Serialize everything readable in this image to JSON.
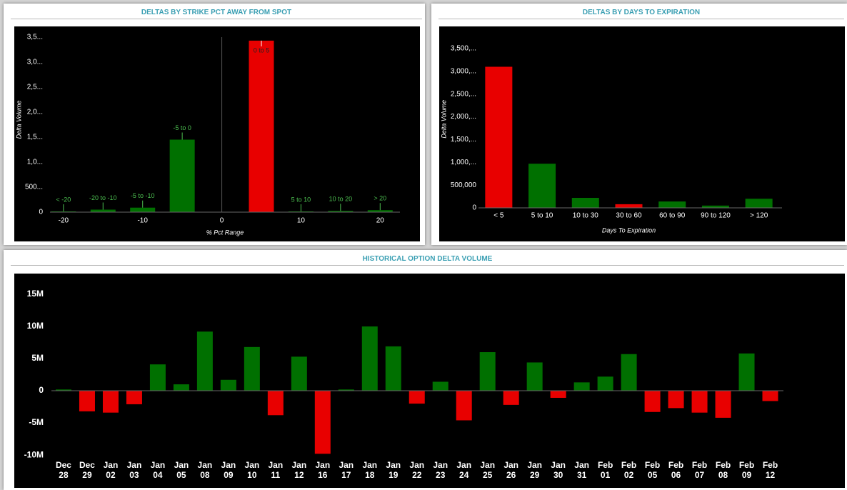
{
  "chart_data": [
    {
      "type": "bar",
      "title": "DELTAS BY STRIKE PCT AWAY FROM SPOT",
      "x_label": "% Pct Range",
      "y_label": "Delta Volume",
      "categories": [
        "< -20",
        "-20 to -10",
        "-5 to -10",
        "-5 to 0",
        "0 to 5",
        "5 to 10",
        "10 to 20",
        "> 20"
      ],
      "x": [
        -20,
        -15,
        -10,
        -5,
        5,
        10,
        15,
        20
      ],
      "values": [
        15000,
        50000,
        90000,
        1450000,
        3430000,
        15000,
        25000,
        40000
      ],
      "colors": [
        "#007000",
        "#007000",
        "#007000",
        "#007000",
        "#e80000",
        "#007000",
        "#007000",
        "#007000"
      ],
      "label_color": "#4cbf50",
      "xlim": [
        -21.7,
        22.5
      ],
      "xticks": [
        -20,
        -10,
        0,
        10,
        20
      ],
      "ylim": [
        0,
        3700000
      ],
      "yticks": [
        0,
        {
          "value": 500000,
          "label": "500..."
        },
        {
          "value": 1000000,
          "label": "1,0..."
        },
        {
          "value": 1500000,
          "label": "1,5..."
        },
        {
          "value": 2000000,
          "label": "2,0..."
        },
        {
          "value": 2500000,
          "label": "2,5..."
        },
        {
          "value": 3000000,
          "label": "3,0..."
        },
        {
          "value": 3500000,
          "label": "3,5..."
        }
      ],
      "grid": false
    },
    {
      "type": "bar",
      "title": "DELTAS BY DAYS TO EXPIRATION",
      "x_label": "Days To Expiration",
      "y_label": "Delta Volume",
      "categories": [
        "< 5",
        "5 to 10",
        "10 to 30",
        "30 to 60",
        "60 to 90",
        "90 to 120",
        "> 120"
      ],
      "values": [
        3100000,
        970000,
        220000,
        80000,
        140000,
        50000,
        200000
      ],
      "colors": [
        "#e80000",
        "#007000",
        "#007000",
        "#e80000",
        "#007000",
        "#007000",
        "#007000"
      ],
      "ylim": [
        0,
        3900000
      ],
      "yticks": [
        0,
        {
          "value": 500000,
          "label": "500,000"
        },
        {
          "value": 1000000,
          "label": "1,000,..."
        },
        {
          "value": 1500000,
          "label": "1,500,..."
        },
        {
          "value": 2000000,
          "label": "2,000,..."
        },
        {
          "value": 2500000,
          "label": "2,500,..."
        },
        {
          "value": 3000000,
          "label": "3,000,..."
        },
        {
          "value": 3500000,
          "label": "3,500,..."
        }
      ],
      "grid": false
    },
    {
      "type": "bar",
      "title": "HISTORICAL OPTION DELTA VOLUME",
      "categories": [
        "Dec 28",
        "Dec 29",
        "Jan 02",
        "Jan 03",
        "Jan 04",
        "Jan 05",
        "Jan 08",
        "Jan 09",
        "Jan 10",
        "Jan 11",
        "Jan 12",
        "Jan 16",
        "Jan 17",
        "Jan 18",
        "Jan 19",
        "Jan 22",
        "Jan 23",
        "Jan 24",
        "Jan 25",
        "Jan 26",
        "Jan 29",
        "Jan 30",
        "Jan 31",
        "Feb 01",
        "Feb 02",
        "Feb 05",
        "Feb 06",
        "Feb 07",
        "Feb 08",
        "Feb 09",
        "Feb 12"
      ],
      "values": [
        200000,
        -3200000,
        -3400000,
        -2100000,
        4100000,
        1000000,
        9200000,
        1700000,
        6800000,
        -3800000,
        5300000,
        -9800000,
        200000,
        10000000,
        6900000,
        -2000000,
        1400000,
        -4600000,
        6000000,
        -2200000,
        4400000,
        -1100000,
        1300000,
        2200000,
        5700000,
        -3300000,
        -2700000,
        -3400000,
        -4200000,
        5800000,
        -1600000
      ],
      "positive_color": "#007000",
      "negative_color": "#e80000",
      "ylim": [
        -15100000,
        18200000
      ],
      "yticks": [
        {
          "value": -10000000,
          "label": "-10M"
        },
        {
          "value": -5000000,
          "label": "-5M"
        },
        0,
        {
          "value": 5000000,
          "label": "5M"
        },
        {
          "value": 10000000,
          "label": "10M"
        },
        {
          "value": 15000000,
          "label": "15M"
        }
      ],
      "grid": false
    }
  ]
}
